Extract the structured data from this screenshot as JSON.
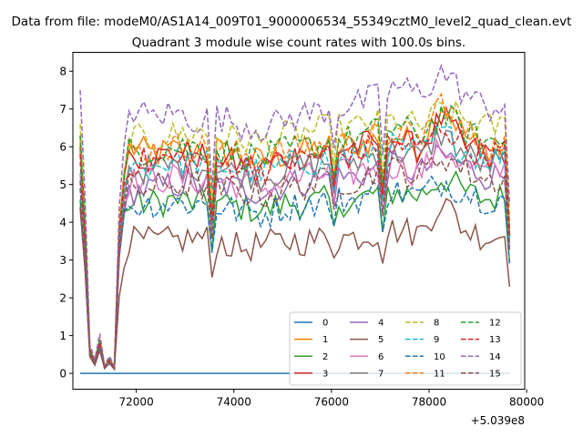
{
  "chart_data": {
    "type": "line",
    "suptitle": "Data from file: modeM0/AS1A14_009T01_9000006534_55349cztM0_level2_quad_clean.evt",
    "title": "Quadrant 3 module wise count rates with 100.0s bins.",
    "xlabel": "",
    "ylabel": "",
    "x_offset_label": "+5.039e8",
    "xlim": [
      70700,
      79960
    ],
    "ylim": [
      -0.42,
      8.5
    ],
    "xticks": [
      72000,
      74000,
      76000,
      78000,
      80000
    ],
    "xtick_labels": [
      "72000",
      "74000",
      "76000",
      "78000",
      "80000"
    ],
    "yticks": [
      0,
      1,
      2,
      3,
      4,
      5,
      6,
      7,
      8
    ],
    "ytick_labels": [
      "0",
      "1",
      "2",
      "3",
      "4",
      "5",
      "6",
      "7",
      "8"
    ],
    "x_start": 70850,
    "bin": 100,
    "n_bins": 89,
    "legend_position": "lower right",
    "series": [
      {
        "name": "0",
        "color": "#1f77b4",
        "dash": "solid",
        "start": 0,
        "ramp": 0,
        "levels": [
          0,
          0,
          0,
          0,
          0,
          0,
          0,
          0,
          0,
          0,
          0,
          0,
          0,
          0,
          0,
          0,
          0,
          0
        ]
      },
      {
        "name": "1",
        "color": "#ff7f0e",
        "dash": "solid",
        "start": 6.3,
        "ramp": 5.6,
        "levels": [
          6.0,
          5.8,
          5.9,
          6.0,
          5.9,
          5.7,
          5.6,
          5.8,
          5.9,
          6.0,
          6.0,
          6.2,
          6.3,
          6.0,
          7.2,
          6.3,
          5.8,
          6.0
        ]
      },
      {
        "name": "2",
        "color": "#2ca02c",
        "dash": "solid",
        "start": 4.6,
        "ramp": 4.6,
        "levels": [
          4.5,
          4.5,
          4.6,
          4.5,
          4.5,
          4.4,
          4.3,
          4.5,
          4.5,
          4.6,
          4.5,
          4.8,
          4.8,
          4.7,
          5.2,
          4.8,
          4.6,
          4.7
        ]
      },
      {
        "name": "3",
        "color": "#d62728",
        "dash": "solid",
        "start": 6.0,
        "ramp": 5.6,
        "levels": [
          5.8,
          5.7,
          5.8,
          5.8,
          5.7,
          5.5,
          5.5,
          5.7,
          5.8,
          5.9,
          6.0,
          6.1,
          6.2,
          5.9,
          6.8,
          6.0,
          5.8,
          5.9
        ]
      },
      {
        "name": "4",
        "color": "#9467bd",
        "dash": "solid",
        "start": 4.4,
        "ramp": 4.5,
        "levels": [
          4.8,
          4.9,
          5.0,
          5.0,
          5.0,
          4.9,
          4.8,
          5.0,
          5.1,
          5.2,
          5.2,
          5.4,
          5.5,
          5.3,
          5.8,
          5.5,
          5.2,
          5.3
        ]
      },
      {
        "name": "5",
        "color": "#8c564b",
        "dash": "solid",
        "start": 4.4,
        "ramp": 3.0,
        "levels": [
          3.5,
          3.5,
          3.5,
          3.6,
          3.5,
          3.3,
          3.4,
          3.5,
          3.5,
          3.6,
          3.6,
          3.7,
          3.8,
          3.7,
          4.6,
          3.8,
          3.6,
          3.7
        ]
      },
      {
        "name": "6",
        "color": "#e377c2",
        "dash": "solid",
        "start": 5.3,
        "ramp": 4.8,
        "levels": [
          5.1,
          5.1,
          5.2,
          5.1,
          5.1,
          5.0,
          4.9,
          5.1,
          5.2,
          5.3,
          5.3,
          5.5,
          5.5,
          5.3,
          6.0,
          5.5,
          5.3,
          5.4
        ]
      },
      {
        "name": "7",
        "color": "#7f7f7f",
        "dash": "solid",
        "start": 5.9,
        "ramp": 5.0,
        "levels": [
          5.4,
          5.4,
          5.5,
          5.5,
          5.4,
          5.3,
          5.2,
          5.4,
          5.5,
          5.6,
          5.6,
          5.8,
          5.9,
          5.7,
          6.4,
          5.8,
          5.5,
          5.6
        ]
      },
      {
        "name": "8",
        "color": "#bcbd22",
        "dash": "dashed",
        "start": 6.6,
        "ramp": 5.8,
        "levels": [
          6.2,
          6.2,
          6.3,
          6.4,
          6.3,
          6.2,
          6.1,
          6.3,
          6.4,
          6.5,
          6.5,
          6.6,
          6.7,
          6.5,
          7.0,
          6.7,
          6.5,
          6.6
        ]
      },
      {
        "name": "9",
        "color": "#17becf",
        "dash": "dashed",
        "start": 5.6,
        "ramp": 5.3,
        "levels": [
          5.5,
          5.5,
          5.6,
          5.6,
          5.5,
          5.4,
          5.3,
          5.5,
          5.6,
          5.7,
          5.7,
          5.9,
          6.0,
          5.8,
          6.4,
          5.9,
          5.7,
          5.8
        ]
      },
      {
        "name": "10",
        "color": "#1f77b4",
        "dash": "dashed",
        "start": 4.9,
        "ramp": 4.6,
        "levels": [
          4.4,
          4.5,
          4.5,
          4.5,
          4.4,
          4.3,
          4.2,
          4.4,
          4.5,
          4.6,
          4.6,
          4.8,
          4.8,
          4.7,
          5.1,
          4.8,
          4.6,
          4.7
        ]
      },
      {
        "name": "11",
        "color": "#ff7f0e",
        "dash": "dashed",
        "start": 6.1,
        "ramp": 5.7,
        "levels": [
          5.9,
          5.9,
          6.0,
          6.0,
          5.9,
          5.8,
          5.7,
          5.9,
          6.0,
          6.1,
          6.1,
          6.3,
          6.4,
          6.2,
          7.3,
          6.4,
          6.0,
          6.1
        ]
      },
      {
        "name": "12",
        "color": "#2ca02c",
        "dash": "dashed",
        "start": 6.3,
        "ramp": 5.5,
        "levels": [
          5.9,
          5.9,
          6.0,
          6.0,
          5.9,
          5.8,
          5.7,
          5.9,
          6.0,
          6.1,
          6.2,
          6.4,
          6.5,
          6.3,
          6.9,
          6.4,
          6.1,
          6.2
        ]
      },
      {
        "name": "13",
        "color": "#d62728",
        "dash": "dashed",
        "start": 5.8,
        "ramp": 5.4,
        "levels": [
          5.6,
          5.6,
          5.7,
          5.7,
          5.6,
          5.5,
          5.4,
          5.6,
          5.7,
          5.8,
          5.8,
          6.0,
          6.1,
          5.9,
          6.6,
          6.0,
          5.8,
          5.9
        ]
      },
      {
        "name": "14",
        "color": "#9467bd",
        "dash": "dashed",
        "start": 7.5,
        "ramp": 6.5,
        "levels": [
          7.0,
          6.8,
          6.9,
          6.7,
          6.8,
          6.6,
          6.5,
          6.7,
          6.9,
          7.0,
          7.1,
          7.3,
          7.6,
          7.4,
          8.0,
          7.4,
          7.0,
          7.2
        ]
      },
      {
        "name": "15",
        "color": "#8c564b",
        "dash": "dashed",
        "start": 5.1,
        "ramp": 4.7,
        "levels": [
          4.9,
          4.9,
          5.0,
          5.0,
          4.9,
          4.8,
          4.7,
          4.9,
          5.0,
          5.1,
          5.1,
          5.3,
          5.4,
          5.2,
          5.8,
          5.4,
          5.1,
          5.2
        ]
      }
    ]
  }
}
